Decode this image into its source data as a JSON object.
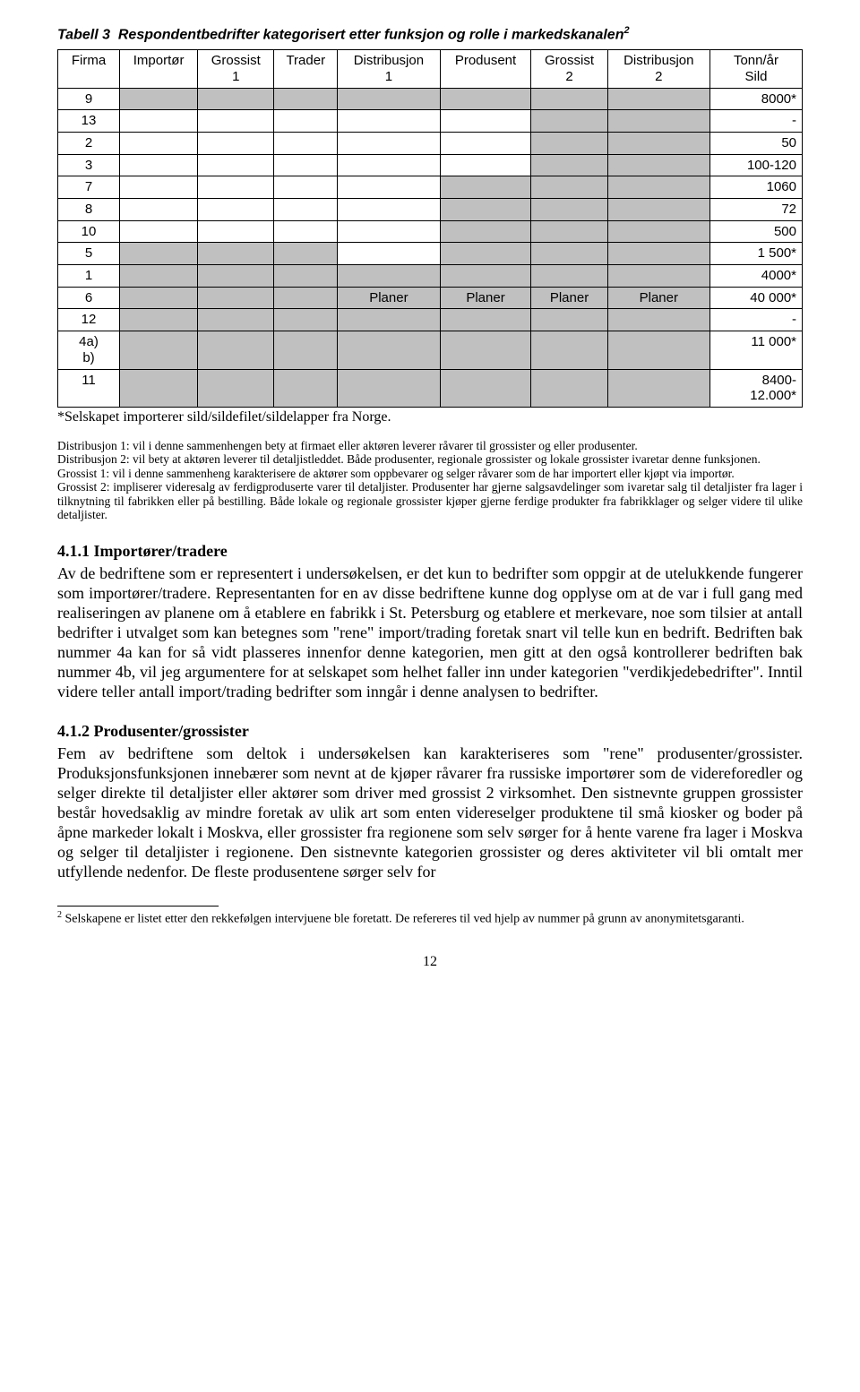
{
  "caption": {
    "label": "Tabell 3",
    "text": "Respondentbedrifter kategorisert etter funksjon og rolle i markedskanalen",
    "sup": "2"
  },
  "table": {
    "headers": [
      "Firma",
      "Importør",
      "Grossist\n1",
      "Trader",
      "Distribusjon\n1",
      "Produsent",
      "Grossist\n2",
      "Distribusjon\n2",
      "Tonn/år\nSild"
    ],
    "col_shading_default": [
      false,
      false,
      false,
      false,
      false,
      false,
      false,
      false,
      false
    ],
    "rows": [
      {
        "firma": "9",
        "shaded": [
          true,
          true,
          true,
          true,
          true,
          true,
          true
        ],
        "last": "8000*"
      },
      {
        "firma": "13",
        "shaded": [
          false,
          false,
          false,
          false,
          false,
          true,
          true
        ],
        "last": "-"
      },
      {
        "firma": "2",
        "shaded": [
          false,
          false,
          false,
          false,
          false,
          true,
          true
        ],
        "last": "50"
      },
      {
        "firma": "3",
        "shaded": [
          false,
          false,
          false,
          false,
          false,
          true,
          true
        ],
        "last": "100-120"
      },
      {
        "firma": "7",
        "shaded": [
          false,
          false,
          false,
          false,
          true,
          true,
          true
        ],
        "last": "1060"
      },
      {
        "firma": "8",
        "shaded": [
          false,
          false,
          false,
          false,
          true,
          true,
          true
        ],
        "last": "72"
      },
      {
        "firma": "10",
        "shaded": [
          false,
          false,
          false,
          false,
          true,
          true,
          true
        ],
        "last": "500"
      },
      {
        "firma": "5",
        "shaded": [
          true,
          true,
          true,
          false,
          true,
          true,
          true
        ],
        "last": "1 500*"
      },
      {
        "firma": "1",
        "shaded": [
          true,
          true,
          true,
          true,
          true,
          true,
          true
        ],
        "last": "4000*"
      },
      {
        "firma": "6",
        "shaded": [
          true,
          true,
          true,
          false,
          false,
          false,
          false
        ],
        "planer_cols": [
          4,
          5,
          6,
          7
        ],
        "planer_text": "Planer",
        "last": "40 000*"
      },
      {
        "firma": "12",
        "shaded": [
          true,
          true,
          true,
          true,
          true,
          true,
          true
        ],
        "last": "-"
      },
      {
        "firma": "4a)\nb)",
        "shaded": [
          true,
          true,
          true,
          true,
          true,
          true,
          true
        ],
        "second_row_shade": [
          false,
          false,
          false,
          true,
          true,
          true,
          true
        ],
        "last": "11 000*"
      },
      {
        "firma": "11",
        "shaded": [
          true,
          true,
          true,
          true,
          true,
          true,
          true
        ],
        "last": "8400-\n12.000*"
      }
    ],
    "planer_bg": "#c0c0c0"
  },
  "under_table_note": "*Selskapet importerer sild/sildefilet/sildelapper fra Norge.",
  "definitions": "Distribusjon 1:  vil i denne sammenhengen bety at firmaet eller aktøren leverer råvarer til grossister og eller produsenter.\nDistribusjon 2: vil bety at aktøren leverer til detaljistleddet. Både produsenter, regionale grossister og lokale grossister ivaretar denne funksjonen.\nGrossist 1: vil i denne sammenheng karakterisere de aktører som oppbevarer og selger råvarer som de har importert eller kjøpt via importør.\nGrossist 2:  impliserer videresalg av ferdigproduserte  varer til detaljister. Produsenter har gjerne salgsavdelinger som ivaretar salg til detaljister fra lager i tilknytning til fabrikken eller på bestilling. Både lokale og regionale grossister kjøper gjerne ferdige produkter fra fabrikklager og selger videre til ulike detaljister.",
  "sections": {
    "s411": {
      "heading": "4.1.1   Importører/tradere",
      "body": "Av de bedriftene som er representert i undersøkelsen, er det kun to bedrifter som oppgir at de utelukkende fungerer som importører/tradere. Representanten for en av disse bedriftene kunne dog opplyse om at de var i full gang med realiseringen av planene om å etablere en fabrikk i St. Petersburg og etablere et merkevare, noe som tilsier at antall bedrifter i utvalget som kan betegnes som \"rene\" import/trading foretak snart vil telle kun en bedrift. Bedriften bak nummer 4a kan for så vidt plasseres innenfor denne kategorien, men gitt at den også kontrollerer bedriften bak nummer 4b, vil jeg argumentere for at selskapet som helhet faller inn under kategorien \"verdikjedebedrifter\". Inntil videre teller antall import/trading bedrifter som inngår i denne analysen to bedrifter."
    },
    "s412": {
      "heading": "4.1.2   Produsenter/grossister",
      "body": "Fem av bedriftene som deltok i undersøkelsen kan karakteriseres som \"rene\" produsenter/grossister. Produksjonsfunksjonen innebærer som nevnt at de kjøper råvarer fra russiske importører som de videreforedler og selger direkte til detaljister eller aktører som driver med grossist 2 virksomhet. Den sistnevnte gruppen grossister består hovedsaklig av mindre foretak av ulik art som enten videreselger produktene til små kiosker og boder på åpne markeder lokalt i Moskva, eller grossister fra regionene som selv sørger for å hente varene fra lager i Moskva og selger til detaljister i regionene. Den sistnevnte kategorien grossister og deres aktiviteter vil bli omtalt mer utfyllende nedenfor. De fleste produsentene sørger selv for"
    }
  },
  "footnote": {
    "sup": "2",
    "text": " Selskapene er listet etter den rekkefølgen intervjuene ble foretatt. De refereres til ved hjelp av nummer på grunn av anonymitetsgaranti."
  },
  "page_number": "12"
}
